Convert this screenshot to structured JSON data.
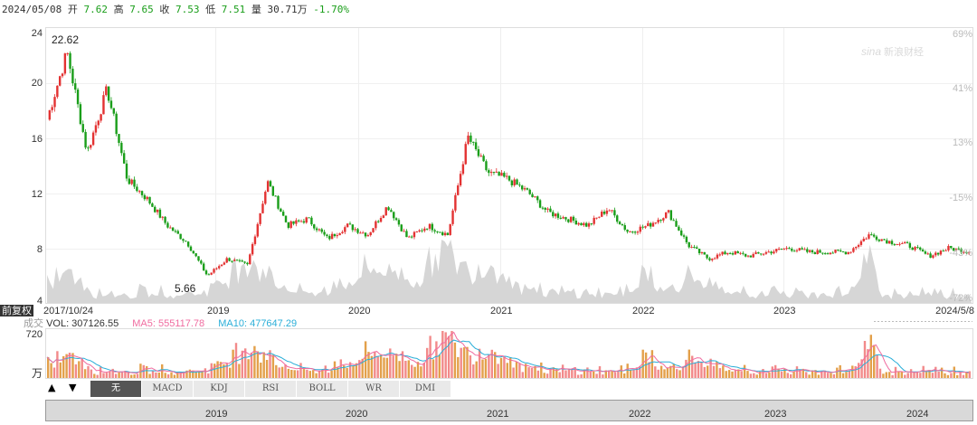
{
  "quote": {
    "date": "2024/05/08",
    "open_label": "开",
    "open": "7.62",
    "high_label": "高",
    "high": "7.65",
    "close_label": "收",
    "close": "7.53",
    "low_label": "低",
    "low": "7.51",
    "vol_label": "量",
    "vol": "30.71万",
    "change": "-1.70%"
  },
  "chart": {
    "y_ticks": [
      "24",
      "20",
      "16",
      "12",
      "8",
      "4"
    ],
    "pct_ticks": [
      "69%",
      "41%",
      "13%",
      "-15%",
      "-43%",
      "-72%"
    ],
    "x_labels": [
      "2017/10/24",
      "2019",
      "2020",
      "2021",
      "2022",
      "2023",
      "2024/5/8"
    ],
    "max_label": "22.62",
    "min_label": "5.66",
    "watermark": "新浪财经",
    "adjust_label": "前复权"
  },
  "volume": {
    "title": "成交",
    "vol_text": "VOL: 307126.55",
    "ma5_text": "MA5: 555117.78",
    "ma10_text": "MA10: 477647.29",
    "y_top": "720",
    "unit": "万",
    "colors": {
      "ma5": "#f06ca0",
      "ma10": "#2aaed8"
    }
  },
  "controls": {
    "up_arrow": "▲",
    "down_arrow": "▼",
    "tabs": [
      {
        "label": "无",
        "active": true
      },
      {
        "label": "MACD",
        "active": false
      },
      {
        "label": "KDJ",
        "active": false
      },
      {
        "label": "RSI",
        "active": false
      },
      {
        "label": "BOLL",
        "active": false
      },
      {
        "label": "WR",
        "active": false
      },
      {
        "label": "DMI",
        "active": false
      }
    ]
  },
  "navigator": {
    "years": [
      "2019",
      "2020",
      "2021",
      "2022",
      "2023",
      "2024"
    ]
  },
  "colors": {
    "up": "#e33232",
    "down": "#1a9e1a",
    "volume_area": "#d3d3d3",
    "grid": "#eeeeee"
  },
  "chart_data": {
    "type": "line",
    "title": "",
    "xlabel": "",
    "ylabel": "",
    "ylim": [
      4,
      24
    ],
    "x": [
      "2017/10/24",
      "2017/11",
      "2017/12",
      "2018/01",
      "2018/03",
      "2018/05",
      "2018/07",
      "2018/09",
      "2018/10",
      "2018/12",
      "2019/01",
      "2019/03",
      "2019/04",
      "2019/06",
      "2019/08",
      "2019/10",
      "2019/12",
      "2020/01",
      "2020/02",
      "2020/04",
      "2020/06",
      "2020/07",
      "2020/08",
      "2020/09",
      "2020/11",
      "2021/01",
      "2021/03",
      "2021/05",
      "2021/07",
      "2021/09",
      "2021/11",
      "2022/01",
      "2022/03",
      "2022/04",
      "2022/06",
      "2022/08",
      "2022/10",
      "2022/12",
      "2023/02",
      "2023/04",
      "2023/06",
      "2023/07",
      "2023/09",
      "2023/11",
      "2024/01",
      "2024/03",
      "2024/05/08"
    ],
    "series": [
      {
        "values": [
          17.5,
          22.6,
          15.0,
          19.8,
          13.0,
          11.5,
          9.5,
          8.2,
          5.7,
          7.0,
          6.5,
          12.8,
          9.5,
          10.0,
          8.5,
          9.5,
          8.8,
          11.0,
          8.5,
          9.5,
          8.8,
          16.2,
          13.5,
          13.0,
          12.0,
          10.5,
          10.0,
          9.5,
          10.8,
          9.0,
          9.5,
          10.5,
          8.0,
          7.0,
          7.5,
          7.2,
          7.5,
          7.8,
          7.5,
          7.5,
          7.5,
          8.8,
          8.3,
          8.0,
          7.2,
          7.8,
          7.53
        ]
      }
    ]
  }
}
